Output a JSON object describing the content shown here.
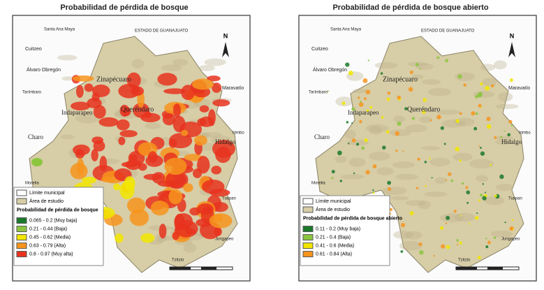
{
  "panels": [
    {
      "title": "Probabilidad de pérdida de bosque",
      "places": [
        "Cuitzeo",
        "Santa Ana Maya",
        "ESTADO DE GUANAJUATO",
        "Álvaro Obregón",
        "Zinapécuaro",
        "Tarímbaro",
        "Maravatío",
        "Indaparapeo",
        "Queréndaro",
        "Charo",
        "Hidalgo",
        "Irimbo",
        "Morelia",
        "Tuxpan",
        "Jungapeo",
        "Tzitzio"
      ],
      "legend": {
        "boundary": "Límite municipal",
        "study_area": "Área de estudio",
        "title": "Probabilidad de pérdida de bosque",
        "items": [
          {
            "label": "0.065 - 0.2 (Muy baja)",
            "color": "#1a7a2a"
          },
          {
            "label": "0.21 - 0.44 (Baja)",
            "color": "#8cc63f"
          },
          {
            "label": "0.45 - 0.62 (Media)",
            "color": "#f2e600"
          },
          {
            "label": "0.63 - 0.79 (Alta)",
            "color": "#f7941d"
          },
          {
            "label": "0.8 - 0.97 (Muy alta)",
            "color": "#e8321e"
          }
        ]
      }
    },
    {
      "title": "Probabilidad de pérdida de bosque abierto",
      "places": [
        "Cuitzeo",
        "Santa Ana Maya",
        "ESTADO DE GUANAJUATO",
        "Álvaro Obregón",
        "Zinapécuaro",
        "Tarímbaro",
        "Maravatío",
        "Indaparapeo",
        "Queréndaro",
        "Charo",
        "Hidalgo",
        "Irimbo",
        "Morelia",
        "Tuxpan",
        "Jungapeo",
        "Tzitzio"
      ],
      "legend": {
        "boundary": "Límite municipal",
        "study_area": "Área de estudio",
        "title": "Probabilidad de pérdida de bosque abierto",
        "items": [
          {
            "label": "0.11 - 0.2 (Muy baja)",
            "color": "#1a7a2a"
          },
          {
            "label": "0.21 - 0.4 (Baja)",
            "color": "#8cc63f"
          },
          {
            "label": "0.41 - 0.6 (Media)",
            "color": "#f2e600"
          },
          {
            "label": "0.61 - 0.84 (Alta)",
            "color": "#f7941d"
          }
        ]
      }
    }
  ]
}
